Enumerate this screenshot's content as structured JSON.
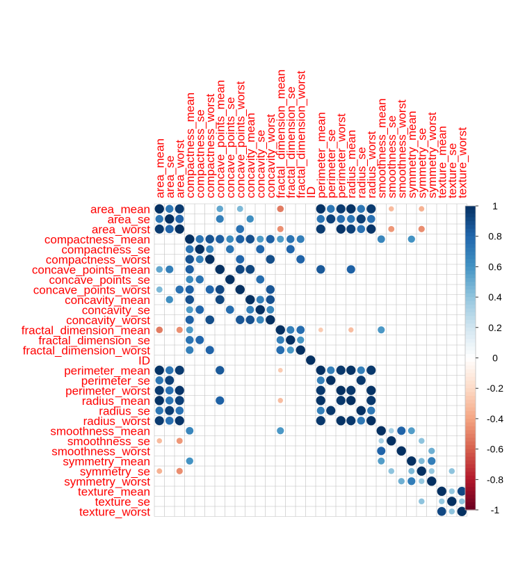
{
  "chart_data": {
    "type": "heatmap",
    "subtype": "correlation-circle-matrix",
    "title": "",
    "variables": [
      "area_mean",
      "area_se",
      "area_worst",
      "compactness_mean",
      "compactness_se",
      "compactness_worst",
      "concave_points_mean",
      "concave_points_se",
      "concave_points_worst",
      "concavity_mean",
      "concavity_se",
      "concavity_worst",
      "fractal_dimension_mean",
      "fractal_dimension_se",
      "fractal_dimension_worst",
      "ID",
      "perimeter_mean",
      "perimeter_se",
      "perimeter_worst",
      "radius_mean",
      "radius_se",
      "radius_worst",
      "smoothness_mean",
      "smoothness_se",
      "smoothness_worst",
      "symmetry_mean",
      "symmetry_se",
      "symmetry_worst",
      "texture_mean",
      "texture_se",
      "texture_worst"
    ],
    "correlations": [
      {
        "pair": [
          "area_mean",
          "area_se"
        ],
        "value": 0.73
      },
      {
        "pair": [
          "area_mean",
          "area_worst"
        ],
        "value": 0.96
      },
      {
        "pair": [
          "area_mean",
          "concave_points_mean"
        ],
        "value": 0.52
      },
      {
        "pair": [
          "area_mean",
          "concave_points_worst"
        ],
        "value": 0.45
      },
      {
        "pair": [
          "area_mean",
          "fractal_dimension_mean"
        ],
        "value": -0.52
      },
      {
        "pair": [
          "area_mean",
          "perimeter_mean"
        ],
        "value": 0.99
      },
      {
        "pair": [
          "area_mean",
          "perimeter_se"
        ],
        "value": 0.73
      },
      {
        "pair": [
          "area_mean",
          "perimeter_worst"
        ],
        "value": 0.96
      },
      {
        "pair": [
          "area_mean",
          "radius_mean"
        ],
        "value": 0.99
      },
      {
        "pair": [
          "area_mean",
          "radius_se"
        ],
        "value": 0.73
      },
      {
        "pair": [
          "area_mean",
          "radius_worst"
        ],
        "value": 0.96
      },
      {
        "pair": [
          "area_mean",
          "smoothness_se"
        ],
        "value": -0.32
      },
      {
        "pair": [
          "area_mean",
          "symmetry_se"
        ],
        "value": -0.35
      },
      {
        "pair": [
          "area_se",
          "area_worst"
        ],
        "value": 0.81
      },
      {
        "pair": [
          "area_se",
          "perimeter_se"
        ],
        "value": 0.94
      },
      {
        "pair": [
          "area_se",
          "radius_se"
        ],
        "value": 0.95
      },
      {
        "pair": [
          "area_se",
          "perimeter_mean"
        ],
        "value": 0.74
      },
      {
        "pair": [
          "area_se",
          "radius_mean"
        ],
        "value": 0.74
      },
      {
        "pair": [
          "area_se",
          "perimeter_worst"
        ],
        "value": 0.76
      },
      {
        "pair": [
          "area_se",
          "radius_worst"
        ],
        "value": 0.76
      },
      {
        "pair": [
          "area_se",
          "concave_points_mean"
        ],
        "value": 0.69
      },
      {
        "pair": [
          "area_se",
          "concavity_mean"
        ],
        "value": 0.62
      },
      {
        "pair": [
          "area_worst",
          "concave_points_worst"
        ],
        "value": 0.75
      },
      {
        "pair": [
          "area_worst",
          "perimeter_mean"
        ],
        "value": 0.96
      },
      {
        "pair": [
          "area_worst",
          "perimeter_worst"
        ],
        "value": 0.98
      },
      {
        "pair": [
          "area_worst",
          "radius_mean"
        ],
        "value": 0.94
      },
      {
        "pair": [
          "area_worst",
          "radius_worst"
        ],
        "value": 0.98
      },
      {
        "pair": [
          "area_worst",
          "radius_se"
        ],
        "value": 0.75
      },
      {
        "pair": [
          "area_worst",
          "fractal_dimension_mean"
        ],
        "value": -0.46
      },
      {
        "pair": [
          "area_worst",
          "smoothness_se"
        ],
        "value": -0.44
      },
      {
        "pair": [
          "area_worst",
          "symmetry_se"
        ],
        "value": -0.47
      },
      {
        "pair": [
          "compactness_mean",
          "compactness_se"
        ],
        "value": 0.74
      },
      {
        "pair": [
          "compactness_mean",
          "compactness_worst"
        ],
        "value": 0.87
      },
      {
        "pair": [
          "compactness_mean",
          "concave_points_mean"
        ],
        "value": 0.83
      },
      {
        "pair": [
          "compactness_mean",
          "concave_points_se"
        ],
        "value": 0.64
      },
      {
        "pair": [
          "compactness_mean",
          "concave_points_worst"
        ],
        "value": 0.82
      },
      {
        "pair": [
          "compactness_mean",
          "concavity_mean"
        ],
        "value": 0.88
      },
      {
        "pair": [
          "compactness_mean",
          "concavity_se"
        ],
        "value": 0.57
      },
      {
        "pair": [
          "compactness_mean",
          "concavity_worst"
        ],
        "value": 0.82
      },
      {
        "pair": [
          "compactness_mean",
          "fractal_dimension_mean"
        ],
        "value": 0.57
      },
      {
        "pair": [
          "compactness_mean",
          "fractal_dimension_se"
        ],
        "value": 0.74
      },
      {
        "pair": [
          "compactness_mean",
          "fractal_dimension_worst"
        ],
        "value": 0.69
      },
      {
        "pair": [
          "compactness_mean",
          "smoothness_mean"
        ],
        "value": 0.66
      },
      {
        "pair": [
          "compactness_mean",
          "symmetry_mean"
        ],
        "value": 0.6
      },
      {
        "pair": [
          "compactness_se",
          "compactness_worst"
        ],
        "value": 0.68
      },
      {
        "pair": [
          "compactness_se",
          "concave_points_se"
        ],
        "value": 0.74
      },
      {
        "pair": [
          "compactness_se",
          "concavity_se"
        ],
        "value": 0.8
      },
      {
        "pair": [
          "compactness_se",
          "fractal_dimension_se"
        ],
        "value": 0.8
      },
      {
        "pair": [
          "compactness_worst",
          "concave_points_worst"
        ],
        "value": 0.8
      },
      {
        "pair": [
          "compactness_worst",
          "concavity_worst"
        ],
        "value": 0.89
      },
      {
        "pair": [
          "compactness_worst",
          "fractal_dimension_worst"
        ],
        "value": 0.81
      },
      {
        "pair": [
          "concave_points_mean",
          "concave_points_worst"
        ],
        "value": 0.91
      },
      {
        "pair": [
          "concave_points_mean",
          "concavity_mean"
        ],
        "value": 0.92
      },
      {
        "pair": [
          "concave_points_mean",
          "perimeter_mean"
        ],
        "value": 0.85
      },
      {
        "pair": [
          "concave_points_mean",
          "radius_mean"
        ],
        "value": 0.82
      },
      {
        "pair": [
          "concave_points_se",
          "concavity_se"
        ],
        "value": 0.77
      },
      {
        "pair": [
          "concave_points_worst",
          "concavity_worst"
        ],
        "value": 0.86
      },
      {
        "pair": [
          "concavity_mean",
          "concavity_se"
        ],
        "value": 0.69
      },
      {
        "pair": [
          "concavity_mean",
          "concavity_worst"
        ],
        "value": 0.88
      },
      {
        "pair": [
          "concavity_se",
          "concavity_worst"
        ],
        "value": 0.66
      },
      {
        "pair": [
          "fractal_dimension_mean",
          "fractal_dimension_se"
        ],
        "value": 0.69
      },
      {
        "pair": [
          "fractal_dimension_mean",
          "fractal_dimension_worst"
        ],
        "value": 0.77
      },
      {
        "pair": [
          "fractal_dimension_mean",
          "perimeter_mean"
        ],
        "value": -0.26
      },
      {
        "pair": [
          "fractal_dimension_mean",
          "radius_mean"
        ],
        "value": -0.31
      },
      {
        "pair": [
          "fractal_dimension_mean",
          "smoothness_mean"
        ],
        "value": 0.58
      },
      {
        "pair": [
          "fractal_dimension_se",
          "fractal_dimension_worst"
        ],
        "value": 0.59
      },
      {
        "pair": [
          "perimeter_mean",
          "perimeter_se"
        ],
        "value": 0.69
      },
      {
        "pair": [
          "perimeter_mean",
          "perimeter_worst"
        ],
        "value": 0.97
      },
      {
        "pair": [
          "perimeter_mean",
          "radius_mean"
        ],
        "value": 0.99
      },
      {
        "pair": [
          "perimeter_mean",
          "radius_se"
        ],
        "value": 0.69
      },
      {
        "pair": [
          "perimeter_mean",
          "radius_worst"
        ],
        "value": 0.97
      },
      {
        "pair": [
          "perimeter_se",
          "radius_se"
        ],
        "value": 0.97
      },
      {
        "pair": [
          "perimeter_worst",
          "radius_mean"
        ],
        "value": 0.97
      },
      {
        "pair": [
          "perimeter_worst",
          "radius_worst"
        ],
        "value": 0.99
      },
      {
        "pair": [
          "radius_mean",
          "radius_worst"
        ],
        "value": 0.97
      },
      {
        "pair": [
          "radius_se",
          "radius_worst"
        ],
        "value": 0.72
      },
      {
        "pair": [
          "smoothness_mean",
          "smoothness_se"
        ],
        "value": 0.33
      },
      {
        "pair": [
          "smoothness_mean",
          "smoothness_worst"
        ],
        "value": 0.81
      },
      {
        "pair": [
          "smoothness_mean",
          "symmetry_mean"
        ],
        "value": 0.56
      },
      {
        "pair": [
          "smoothness_se",
          "symmetry_se"
        ],
        "value": 0.41
      },
      {
        "pair": [
          "smoothness_worst",
          "symmetry_worst"
        ],
        "value": 0.49
      },
      {
        "pair": [
          "symmetry_mean",
          "symmetry_se"
        ],
        "value": 0.45
      },
      {
        "pair": [
          "symmetry_mean",
          "symmetry_worst"
        ],
        "value": 0.7
      },
      {
        "pair": [
          "symmetry_se",
          "symmetry_worst"
        ],
        "value": 0.39
      },
      {
        "pair": [
          "symmetry_se",
          "texture_se"
        ],
        "value": 0.41
      },
      {
        "pair": [
          "texture_mean",
          "texture_se"
        ],
        "value": 0.39
      },
      {
        "pair": [
          "texture_mean",
          "texture_worst"
        ],
        "value": 0.91
      },
      {
        "pair": [
          "texture_se",
          "texture_worst"
        ],
        "value": 0.41
      },
      {
        "pair": [
          "ID",
          "compactness_mean"
        ],
        "value": 0.0
      }
    ],
    "colorbar": {
      "range": [
        -1,
        1
      ],
      "ticks": [
        "1",
        "0.8",
        "0.6",
        "0.4",
        "0.2",
        "0",
        "-0.2",
        "-0.4",
        "-0.6",
        "-0.8",
        "-1"
      ],
      "tick_values": [
        1,
        0.8,
        0.6,
        0.4,
        0.2,
        0,
        -0.2,
        -0.4,
        -0.6,
        -0.8,
        -1
      ],
      "colors": [
        "#67001F",
        "#B2182B",
        "#D6604D",
        "#F4A582",
        "#FDDBC7",
        "#FFFFFF",
        "#D1E5F0",
        "#92C5DE",
        "#4393C3",
        "#2166AC",
        "#053061"
      ]
    },
    "label_color": "#FF0000",
    "grid_color": "#BEBEBE",
    "legend_position": "right"
  }
}
